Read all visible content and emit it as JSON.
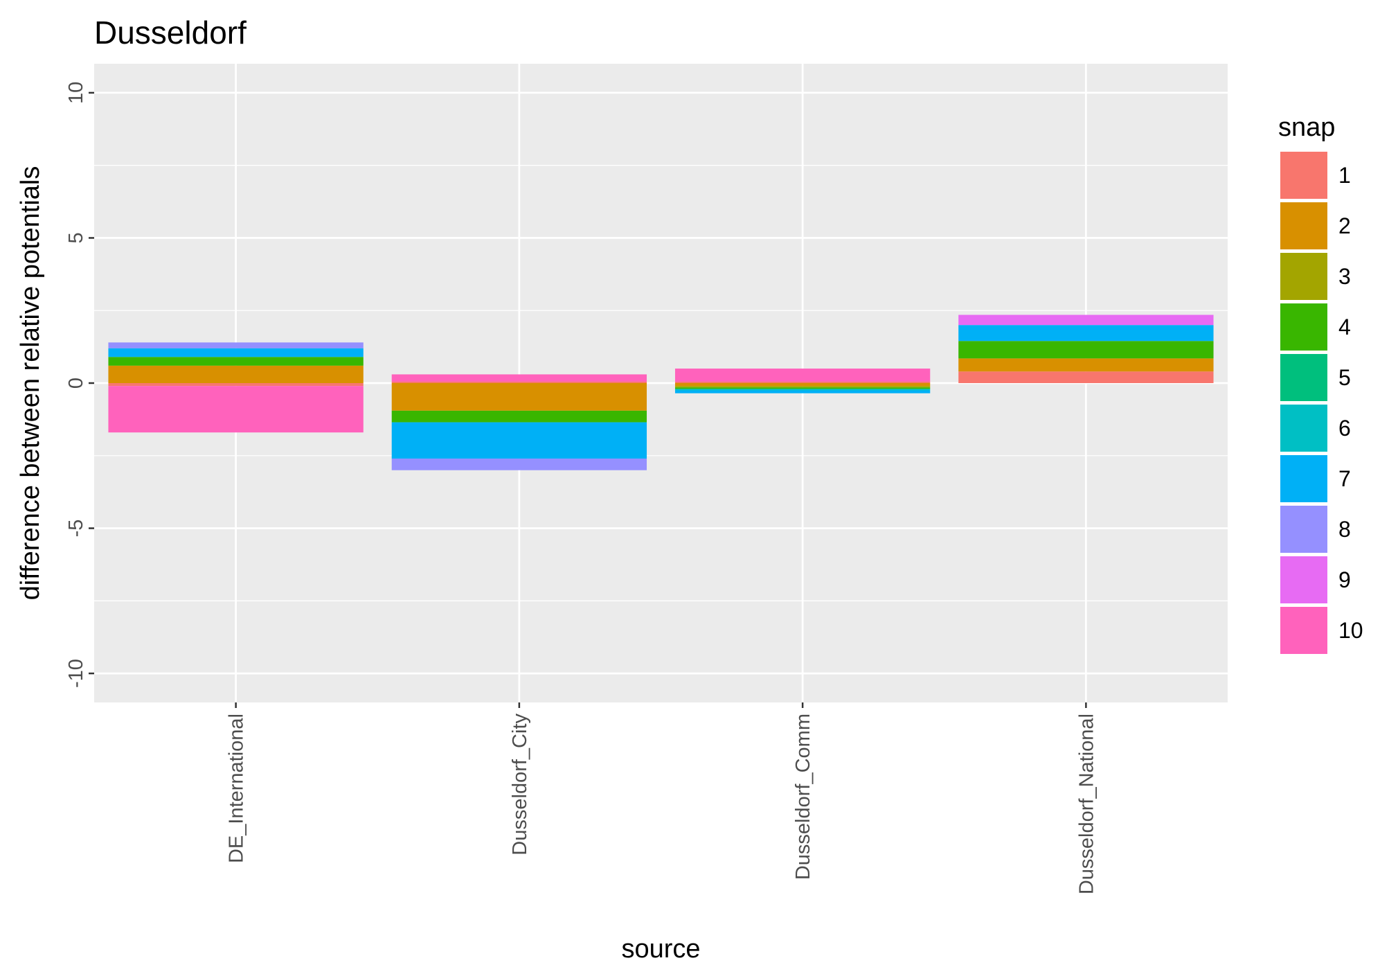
{
  "chart_data": {
    "type": "bar",
    "stacked": true,
    "title": "Dusseldorf",
    "xlabel": "source",
    "ylabel": "difference between relative potentials",
    "ylim": [
      -11,
      11
    ],
    "yticks": [
      -10,
      -5,
      0,
      5,
      10
    ],
    "categories": [
      "DE_International",
      "Dusseldorf_City",
      "Dusseldorf_Comm",
      "Dusseldorf_National"
    ],
    "legend": {
      "title": "snap",
      "position": "right"
    },
    "grid": true,
    "series": [
      {
        "name": "1",
        "color": "#F8766D",
        "values": [
          -0.1,
          0.05,
          0.05,
          0.4
        ]
      },
      {
        "name": "2",
        "color": "#D89000",
        "values": [
          0.6,
          -0.95,
          -0.1,
          0.45
        ]
      },
      {
        "name": "3",
        "color": "#A3A500",
        "values": [
          0.0,
          0.0,
          -0.05,
          0.0
        ]
      },
      {
        "name": "4",
        "color": "#39B600",
        "values": [
          0.3,
          -0.4,
          -0.05,
          0.6
        ]
      },
      {
        "name": "5",
        "color": "#00BF7D",
        "values": [
          0.0,
          0.0,
          0.0,
          0.0
        ]
      },
      {
        "name": "6",
        "color": "#00BFC4",
        "values": [
          0.0,
          0.0,
          -0.05,
          0.0
        ]
      },
      {
        "name": "7",
        "color": "#00B0F6",
        "values": [
          0.3,
          -1.25,
          -0.1,
          0.55
        ]
      },
      {
        "name": "8",
        "color": "#9590FF",
        "values": [
          0.2,
          -0.4,
          0.0,
          0.0
        ]
      },
      {
        "name": "9",
        "color": "#E76BF3",
        "values": [
          0.0,
          0.0,
          0.0,
          0.35
        ]
      },
      {
        "name": "10",
        "color": "#FF62BC",
        "values": [
          -1.6,
          0.25,
          0.45,
          0.0
        ]
      }
    ]
  }
}
